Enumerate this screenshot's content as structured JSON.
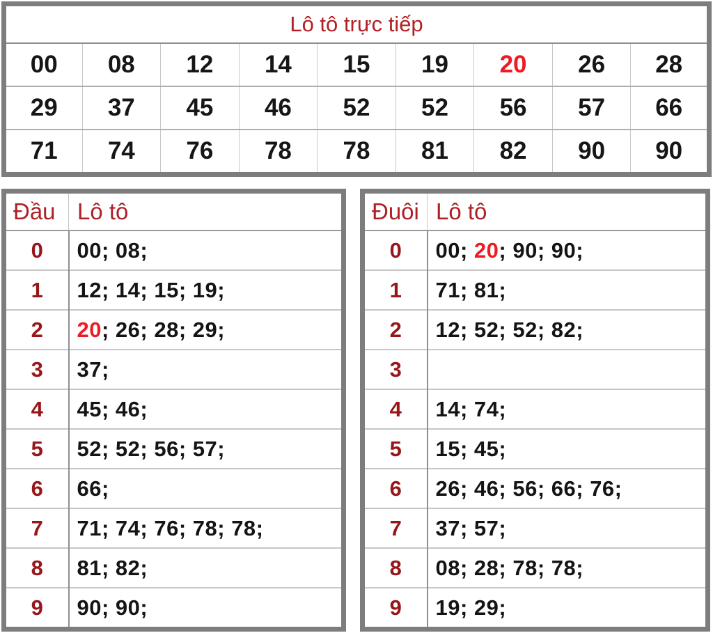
{
  "colors": {
    "border_gray": "#7d7d7d",
    "title_red": "#b32025",
    "header_red": "#ad2127",
    "digit_maroon": "#97161a",
    "highlight_red": "#ec1c24",
    "text_black": "#141414"
  },
  "top_table": {
    "title": "Lô tô trực tiếp",
    "rows": [
      [
        "00",
        "08",
        "12",
        "14",
        "15",
        "19",
        "20",
        "26",
        "28"
      ],
      [
        "29",
        "37",
        "45",
        "46",
        "52",
        "52",
        "56",
        "57",
        "66"
      ],
      [
        "71",
        "74",
        "76",
        "78",
        "78",
        "81",
        "82",
        "90",
        "90"
      ]
    ],
    "highlight_cells": [
      [
        0,
        6
      ]
    ]
  },
  "dau_table": {
    "col1_header": "Đầu",
    "col2_header": "Lô tô",
    "rows": [
      {
        "digit": "0",
        "values": [
          "00",
          "08"
        ],
        "highlight": []
      },
      {
        "digit": "1",
        "values": [
          "12",
          "14",
          "15",
          "19"
        ],
        "highlight": []
      },
      {
        "digit": "2",
        "values": [
          "20",
          "26",
          "28",
          "29"
        ],
        "highlight": [
          0
        ]
      },
      {
        "digit": "3",
        "values": [
          "37"
        ],
        "highlight": []
      },
      {
        "digit": "4",
        "values": [
          "45",
          "46"
        ],
        "highlight": []
      },
      {
        "digit": "5",
        "values": [
          "52",
          "52",
          "56",
          "57"
        ],
        "highlight": []
      },
      {
        "digit": "6",
        "values": [
          "66"
        ],
        "highlight": []
      },
      {
        "digit": "7",
        "values": [
          "71",
          "74",
          "76",
          "78",
          "78"
        ],
        "highlight": []
      },
      {
        "digit": "8",
        "values": [
          "81",
          "82"
        ],
        "highlight": []
      },
      {
        "digit": "9",
        "values": [
          "90",
          "90"
        ],
        "highlight": []
      }
    ]
  },
  "duoi_table": {
    "col1_header": "Đuôi",
    "col2_header": "Lô tô",
    "rows": [
      {
        "digit": "0",
        "values": [
          "00",
          "20",
          "90",
          "90"
        ],
        "highlight": [
          1
        ]
      },
      {
        "digit": "1",
        "values": [
          "71",
          "81"
        ],
        "highlight": []
      },
      {
        "digit": "2",
        "values": [
          "12",
          "52",
          "52",
          "82"
        ],
        "highlight": []
      },
      {
        "digit": "3",
        "values": [],
        "highlight": []
      },
      {
        "digit": "4",
        "values": [
          "14",
          "74"
        ],
        "highlight": []
      },
      {
        "digit": "5",
        "values": [
          "15",
          "45"
        ],
        "highlight": []
      },
      {
        "digit": "6",
        "values": [
          "26",
          "46",
          "56",
          "66",
          "76"
        ],
        "highlight": []
      },
      {
        "digit": "7",
        "values": [
          "37",
          "57"
        ],
        "highlight": []
      },
      {
        "digit": "8",
        "values": [
          "08",
          "28",
          "78",
          "78"
        ],
        "highlight": []
      },
      {
        "digit": "9",
        "values": [
          "19",
          "29"
        ],
        "highlight": []
      }
    ]
  }
}
